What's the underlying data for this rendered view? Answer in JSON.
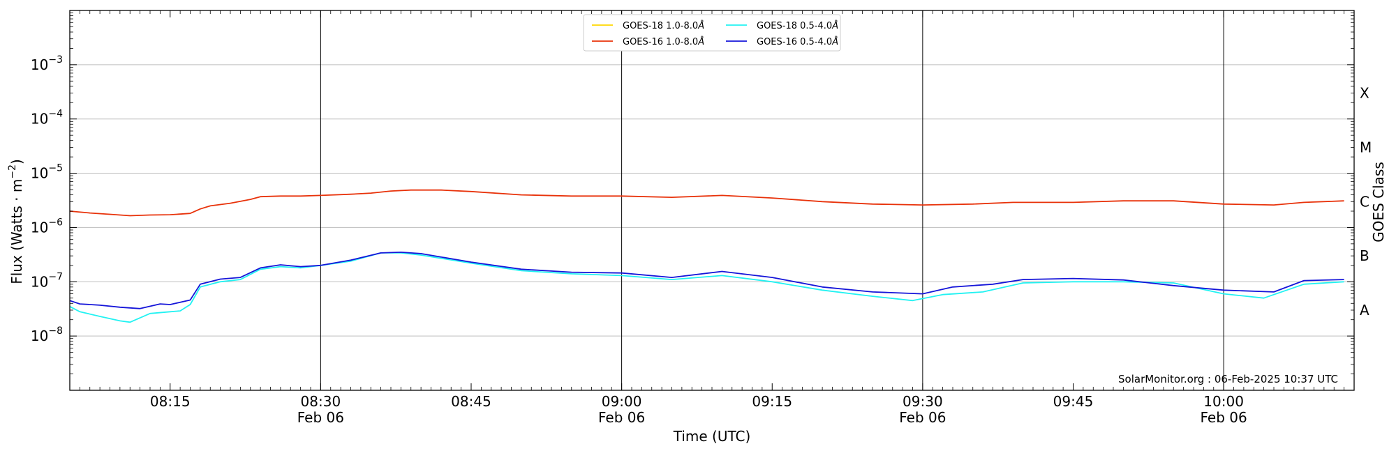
{
  "chart_data": {
    "type": "line",
    "xlabel": "Time (UTC)",
    "ylabel": "Flux (Watts · m",
    "ylabel_sup": "−2",
    "ylabel_end": ")",
    "right_label": "GOES Class",
    "credit": "SolarMonitor.org : 06-Feb-2025 10:37 UTC",
    "yscale": "log",
    "ylim": [
      1e-09,
      0.01
    ],
    "xlim": [
      "2025-02-06 08:05",
      "2025-02-06 10:13"
    ],
    "grid": "horizontal at decades",
    "legend_position": "top-center",
    "yticks": [
      {
        "value": 1e-08,
        "base": "10",
        "exp": "−8"
      },
      {
        "value": 1e-07,
        "base": "10",
        "exp": "−7"
      },
      {
        "value": 1e-06,
        "base": "10",
        "exp": "−6"
      },
      {
        "value": 1e-05,
        "base": "10",
        "exp": "−5"
      },
      {
        "value": 0.0001,
        "base": "10",
        "exp": "−4"
      },
      {
        "value": 0.001,
        "base": "10",
        "exp": "−3"
      }
    ],
    "xticks": [
      {
        "time": "2025-02-06 08:15",
        "label": "08:15",
        "sublabel": ""
      },
      {
        "time": "2025-02-06 08:30",
        "label": "08:30",
        "sublabel": "Feb 06"
      },
      {
        "time": "2025-02-06 08:45",
        "label": "08:45",
        "sublabel": ""
      },
      {
        "time": "2025-02-06 09:00",
        "label": "09:00",
        "sublabel": "Feb 06"
      },
      {
        "time": "2025-02-06 09:15",
        "label": "09:15",
        "sublabel": ""
      },
      {
        "time": "2025-02-06 09:30",
        "label": "09:30",
        "sublabel": "Feb 06"
      },
      {
        "time": "2025-02-06 09:45",
        "label": "09:45",
        "sublabel": ""
      },
      {
        "time": "2025-02-06 10:00",
        "label": "10:00",
        "sublabel": "Feb 06"
      }
    ],
    "vlines": [
      "2025-02-06 08:30",
      "2025-02-06 09:00",
      "2025-02-06 09:30",
      "2025-02-06 10:00"
    ],
    "goes_classes": [
      {
        "label": "A",
        "value": 3e-08
      },
      {
        "label": "B",
        "value": 3e-07
      },
      {
        "label": "C",
        "value": 3e-06
      },
      {
        "label": "M",
        "value": 3e-05
      },
      {
        "label": "X",
        "value": 0.0003
      }
    ],
    "series": [
      {
        "name": "GOES-18 1.0-8.0",
        "color": "#FFD700",
        "x": [],
        "values": []
      },
      {
        "name": "GOES-16 1.0-8.0",
        "color": "#E8320A",
        "x": [
          "2025-02-06 08:05",
          "2025-02-06 08:07",
          "2025-02-06 08:09",
          "2025-02-06 08:11",
          "2025-02-06 08:13",
          "2025-02-06 08:15",
          "2025-02-06 08:17",
          "2025-02-06 08:18",
          "2025-02-06 08:19",
          "2025-02-06 08:21",
          "2025-02-06 08:23",
          "2025-02-06 08:24",
          "2025-02-06 08:26",
          "2025-02-06 08:28",
          "2025-02-06 08:30",
          "2025-02-06 08:33",
          "2025-02-06 08:35",
          "2025-02-06 08:37",
          "2025-02-06 08:39",
          "2025-02-06 08:42",
          "2025-02-06 08:45",
          "2025-02-06 08:50",
          "2025-02-06 08:55",
          "2025-02-06 09:00",
          "2025-02-06 09:05",
          "2025-02-06 09:10",
          "2025-02-06 09:15",
          "2025-02-06 09:20",
          "2025-02-06 09:25",
          "2025-02-06 09:30",
          "2025-02-06 09:35",
          "2025-02-06 09:39",
          "2025-02-06 09:45",
          "2025-02-06 09:50",
          "2025-02-06 09:55",
          "2025-02-06 10:00",
          "2025-02-06 10:05",
          "2025-02-06 10:08",
          "2025-02-06 10:12"
        ],
        "values": [
          2e-06,
          1.85e-06,
          1.75e-06,
          1.65e-06,
          1.7e-06,
          1.72e-06,
          1.82e-06,
          2.2e-06,
          2.5e-06,
          2.8e-06,
          3.3e-06,
          3.7e-06,
          3.8e-06,
          3.8e-06,
          3.9e-06,
          4.1e-06,
          4.3e-06,
          4.7e-06,
          4.9e-06,
          4.9e-06,
          4.6e-06,
          4e-06,
          3.8e-06,
          3.8e-06,
          3.6e-06,
          3.9e-06,
          3.5e-06,
          3e-06,
          2.7e-06,
          2.6e-06,
          2.7e-06,
          2.9e-06,
          2.9e-06,
          3.1e-06,
          3.1e-06,
          2.7e-06,
          2.6e-06,
          2.9e-06,
          3.1e-06
        ]
      },
      {
        "name": "GOES-18 0.5-4.0",
        "color": "#22F2F2",
        "x": [
          "2025-02-06 08:05",
          "2025-02-06 08:06",
          "2025-02-06 08:08",
          "2025-02-06 08:10",
          "2025-02-06 08:11",
          "2025-02-06 08:13",
          "2025-02-06 08:15",
          "2025-02-06 08:16",
          "2025-02-06 08:17",
          "2025-02-06 08:18",
          "2025-02-06 08:20",
          "2025-02-06 08:22",
          "2025-02-06 08:24",
          "2025-02-06 08:26",
          "2025-02-06 08:28",
          "2025-02-06 08:30",
          "2025-02-06 08:33",
          "2025-02-06 08:36",
          "2025-02-06 08:38",
          "2025-02-06 08:40",
          "2025-02-06 08:45",
          "2025-02-06 08:50",
          "2025-02-06 08:55",
          "2025-02-06 09:00",
          "2025-02-06 09:05",
          "2025-02-06 09:10",
          "2025-02-06 09:15",
          "2025-02-06 09:20",
          "2025-02-06 09:25",
          "2025-02-06 09:29",
          "2025-02-06 09:32",
          "2025-02-06 09:36",
          "2025-02-06 09:40",
          "2025-02-06 09:45",
          "2025-02-06 09:50",
          "2025-02-06 09:55",
          "2025-02-06 10:00",
          "2025-02-06 10:04",
          "2025-02-06 10:08",
          "2025-02-06 10:12"
        ],
        "values": [
          3.5e-08,
          2.8e-08,
          2.3e-08,
          1.9e-08,
          1.8e-08,
          2.6e-08,
          2.8e-08,
          2.9e-08,
          3.8e-08,
          8e-08,
          1e-07,
          1.1e-07,
          1.7e-07,
          1.9e-07,
          1.8e-07,
          2e-07,
          2.4e-07,
          3.4e-07,
          3.4e-07,
          3.1e-07,
          2.2e-07,
          1.6e-07,
          1.4e-07,
          1.3e-07,
          1.1e-07,
          1.3e-07,
          1e-07,
          7e-08,
          5.4e-08,
          4.5e-08,
          5.8e-08,
          6.5e-08,
          9.5e-08,
          1e-07,
          1e-07,
          9.5e-08,
          6e-08,
          5e-08,
          9e-08,
          1e-07
        ]
      },
      {
        "name": "GOES-16 0.5-4.0",
        "color": "#1515D9",
        "x": [
          "2025-02-06 08:05",
          "2025-02-06 08:06",
          "2025-02-06 08:08",
          "2025-02-06 08:10",
          "2025-02-06 08:12",
          "2025-02-06 08:14",
          "2025-02-06 08:15",
          "2025-02-06 08:17",
          "2025-02-06 08:18",
          "2025-02-06 08:20",
          "2025-02-06 08:22",
          "2025-02-06 08:24",
          "2025-02-06 08:26",
          "2025-02-06 08:28",
          "2025-02-06 08:30",
          "2025-02-06 08:33",
          "2025-02-06 08:36",
          "2025-02-06 08:38",
          "2025-02-06 08:40",
          "2025-02-06 08:45",
          "2025-02-06 08:50",
          "2025-02-06 08:55",
          "2025-02-06 09:00",
          "2025-02-06 09:05",
          "2025-02-06 09:10",
          "2025-02-06 09:15",
          "2025-02-06 09:20",
          "2025-02-06 09:25",
          "2025-02-06 09:30",
          "2025-02-06 09:33",
          "2025-02-06 09:37",
          "2025-02-06 09:40",
          "2025-02-06 09:45",
          "2025-02-06 09:50",
          "2025-02-06 09:55",
          "2025-02-06 10:00",
          "2025-02-06 10:05",
          "2025-02-06 10:08",
          "2025-02-06 10:12"
        ],
        "values": [
          4.5e-08,
          3.9e-08,
          3.7e-08,
          3.4e-08,
          3.2e-08,
          3.9e-08,
          3.8e-08,
          4.6e-08,
          9e-08,
          1.12e-07,
          1.2e-07,
          1.8e-07,
          2.05e-07,
          1.9e-07,
          2e-07,
          2.5e-07,
          3.4e-07,
          3.5e-07,
          3.3e-07,
          2.3e-07,
          1.7e-07,
          1.5e-07,
          1.45e-07,
          1.2e-07,
          1.55e-07,
          1.2e-07,
          8e-08,
          6.5e-08,
          6e-08,
          8e-08,
          9e-08,
          1.1e-07,
          1.15e-07,
          1.08e-07,
          8.5e-08,
          7e-08,
          6.5e-08,
          1.05e-07,
          1.1e-07
        ]
      }
    ]
  }
}
